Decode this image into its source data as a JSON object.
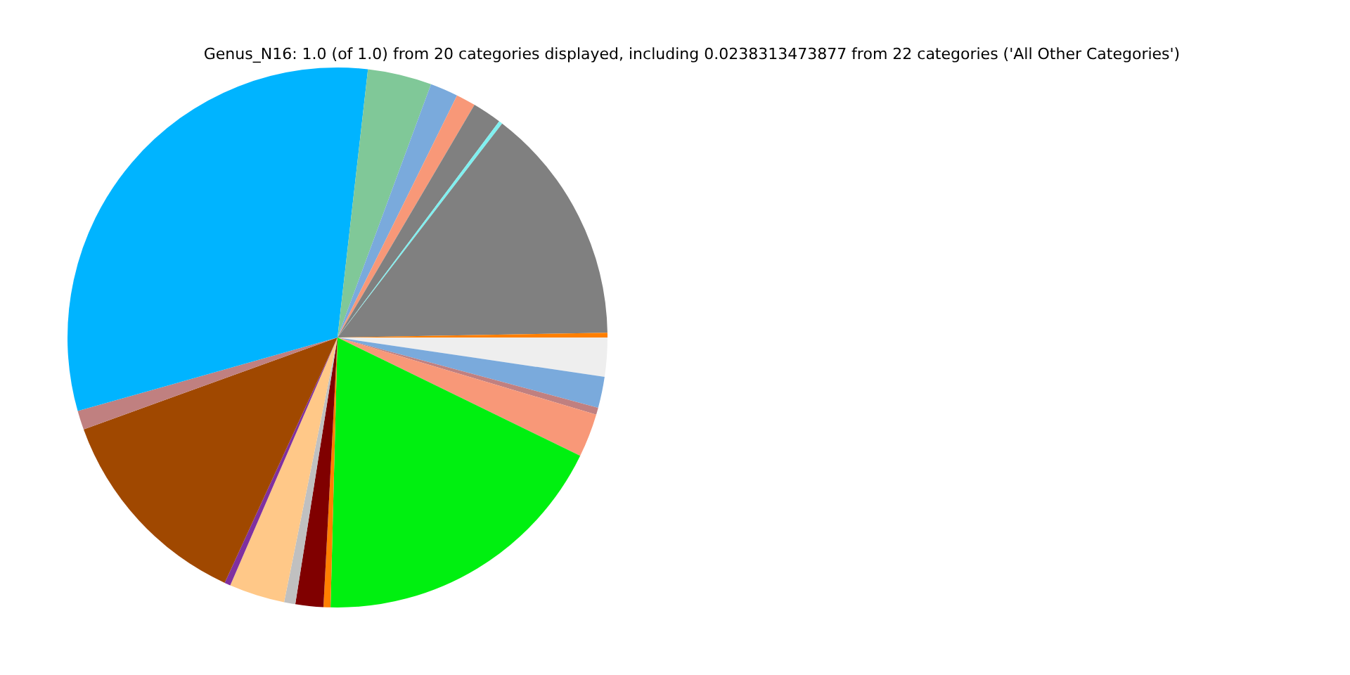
{
  "chart_data": {
    "type": "pie",
    "title": "Genus_N16: 1.0 (of 1.0) from 20 categories displayed, including 0.0238313473877 from 22 categories ('All Other Categories')",
    "categories": [
      null,
      null,
      null,
      null,
      null,
      null,
      null,
      null,
      null,
      null,
      null,
      null,
      null,
      null,
      null,
      null,
      null,
      null,
      null,
      null
    ],
    "values": [
      2.33,
      1.86,
      0.42,
      2.61,
      18.19,
      0.42,
      1.67,
      0.67,
      3.33,
      0.36,
      12.61,
      1.14,
      31.19,
      3.83,
      1.67,
      1.17,
      1.75,
      0.22,
      14.28,
      0.28
    ],
    "colors": [
      "#eeeeee",
      "#7aaadc",
      "#c08080",
      "#f89878",
      "#00f010",
      "#ff7f00",
      "#800000",
      "#c0c0c0",
      "#ffc888",
      "#8030a0",
      "#a04800",
      "#c08080",
      "#00b4ff",
      "#80c898",
      "#7aaadc",
      "#f89878",
      "#808080",
      "#80f0f0",
      "#808080",
      "#ff7f00"
    ],
    "legend": false
  }
}
